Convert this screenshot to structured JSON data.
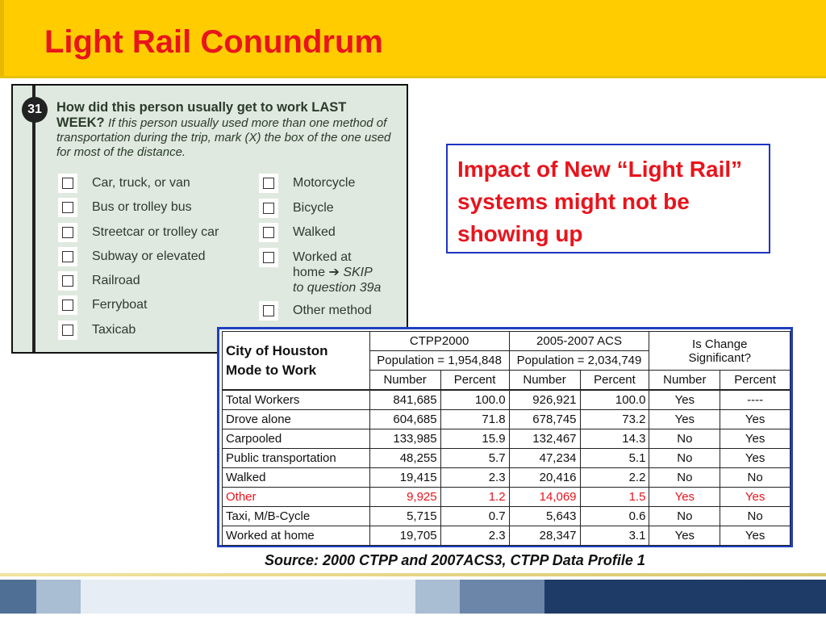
{
  "title": "Light Rail Conundrum",
  "callout": "Impact of New “Light Rail” systems might not be showing up",
  "survey": {
    "number": "31",
    "question_bold": "How did this person usually get to work LAST WEEK?",
    "question_italic": "If this person usually used more than one method of transportation during the trip, mark (X) the box of the one used for most of the distance.",
    "left_options": [
      "Car, truck, or van",
      "Bus or trolley bus",
      "Streetcar or trolley car",
      "Subway or elevated",
      "Railroad",
      "Ferryboat",
      "Taxicab"
    ],
    "right_options": [
      "Motorcycle",
      "Bicycle",
      "Walked"
    ],
    "worked_home_line1": "Worked at",
    "worked_home_line2": "home ➔ ",
    "worked_home_skip": "SKIP",
    "worked_home_line3": "to question 39a",
    "other_method": "Other method"
  },
  "table": {
    "corner_line1": "City of Houston",
    "corner_line2": "Mode to Work",
    "group1": "CTPP2000",
    "group1_pop": "Population = 1,954,848",
    "group2": "2005-2007 ACS",
    "group2_pop": "Population = 2,034,749",
    "group3_line1": "Is Change",
    "group3_line2": "Significant?",
    "sub_number": "Number",
    "sub_percent": "Percent",
    "rows": [
      {
        "label": "Total Workers",
        "n2000": "841,685",
        "p2000": "100.0",
        "nacs": "926,921",
        "pacs": "100.0",
        "sig_n": "Yes",
        "sig_p": "----"
      },
      {
        "label": "Drove alone",
        "n2000": "604,685",
        "p2000": "71.8",
        "nacs": "678,745",
        "pacs": "73.2",
        "sig_n": "Yes",
        "sig_p": "Yes"
      },
      {
        "label": "Carpooled",
        "n2000": "133,985",
        "p2000": "15.9",
        "nacs": "132,467",
        "pacs": "14.3",
        "sig_n": "No",
        "sig_p": "Yes"
      },
      {
        "label": "Public transportation",
        "n2000": "48,255",
        "p2000": "5.7",
        "nacs": "47,234",
        "pacs": "5.1",
        "sig_n": "No",
        "sig_p": "Yes"
      },
      {
        "label": "Walked",
        "n2000": "19,415",
        "p2000": "2.3",
        "nacs": "20,416",
        "pacs": "2.2",
        "sig_n": "No",
        "sig_p": "No"
      },
      {
        "label": "Other",
        "n2000": "9,925",
        "p2000": "1.2",
        "nacs": "14,069",
        "pacs": "1.5",
        "sig_n": "Yes",
        "sig_p": "Yes"
      },
      {
        "label": "Taxi, M/B-Cycle",
        "n2000": "5,715",
        "p2000": "0.7",
        "nacs": "5,643",
        "pacs": "0.6",
        "sig_n": "No",
        "sig_p": "No"
      },
      {
        "label": "Worked at home",
        "n2000": "19,705",
        "p2000": "2.3",
        "nacs": "28,347",
        "pacs": "3.1",
        "sig_n": "Yes",
        "sig_p": "Yes"
      }
    ]
  },
  "source": "Source: 2000 CTPP and 2007ACS3, CTPP Data Profile 1",
  "colors": {
    "title_band": "#ffcc00",
    "title_text": "#e8141c",
    "callout_border": "#1f33c4",
    "highlight_row": "#e8141c",
    "footer_segments": [
      "#4f6f95",
      "#a9bdd3",
      "#e6edf4",
      "#e6edf4",
      "#e6edf4",
      "#a9bdd3",
      "#6b86a8",
      "#1e3a66"
    ]
  }
}
